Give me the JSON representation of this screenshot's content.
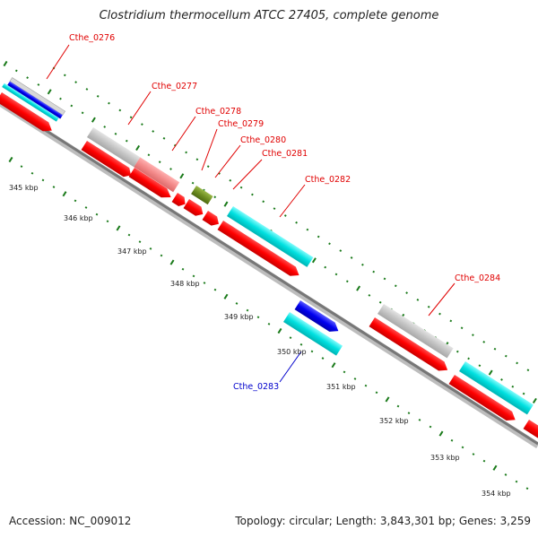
{
  "title": "Clostridium thermocellum ATCC 27405, complete genome",
  "footer": {
    "accession": "Accession: NC_009012",
    "topology": "Topology: circular; Length: 3,843,301 bp; Genes: 3,259"
  },
  "colors": {
    "backbone": "#808080",
    "tick": "#1a7a1a",
    "label_red": "#e00000",
    "label_blue": "#0000cc"
  },
  "scale_labels": [
    "345 kbp",
    "346 kbp",
    "347 kbp",
    "348 kbp",
    "349 kbp",
    "350 kbp",
    "351 kbp",
    "352 kbp",
    "353 kbp",
    "354 kbp"
  ],
  "gene_labels": {
    "cthe_0276": "Cthe_0276",
    "cthe_0277": "Cthe_0277",
    "cthe_0278": "Cthe_0278",
    "cthe_0279": "Cthe_0279",
    "cthe_0280": "Cthe_0280",
    "cthe_0281": "Cthe_0281",
    "cthe_0282": "Cthe_0282",
    "cthe_0283": "Cthe_0283",
    "cthe_0284": "Cthe_0284"
  }
}
